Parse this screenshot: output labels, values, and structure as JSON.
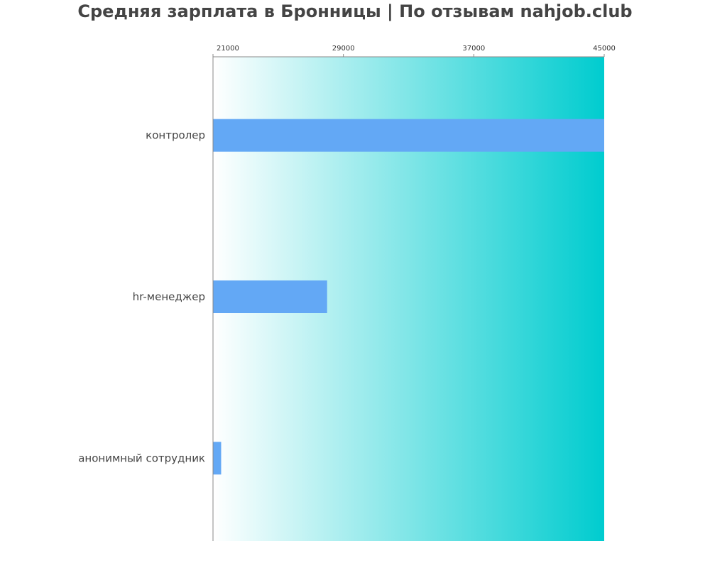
{
  "chart_data": {
    "type": "bar",
    "orientation": "horizontal",
    "title": "Средняя зарплата в Бронницы | По отзывам nahjob.club",
    "categories": [
      "контролер",
      "hr-менеджер",
      "анонимный сотрудник"
    ],
    "values": [
      45000,
      28000,
      21500
    ],
    "xlim": [
      21000,
      45000
    ],
    "xticks": [
      21000,
      29000,
      37000,
      45000
    ],
    "xtick_labels": [
      "21000",
      "29000",
      "37000",
      "45000"
    ],
    "x_axis_position": "top",
    "grid": false,
    "legend": "none",
    "colors": {
      "bar": "#63a8f5",
      "background_start": "#ffffff",
      "background_end": "#00cccf",
      "axis": "#888888"
    }
  }
}
